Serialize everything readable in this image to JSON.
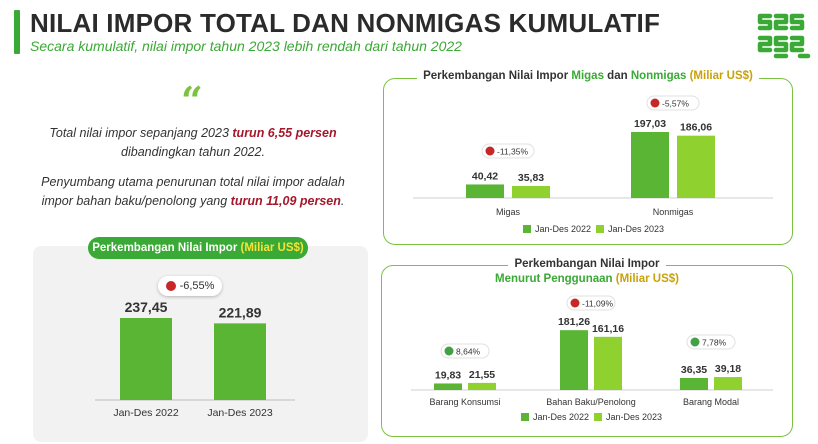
{
  "header": {
    "title": "NILAI IMPOR TOTAL DAN NONMIGAS KUMULATIF",
    "subtitle": "Secara kumulatif, nilai impor tahun 2023 lebih rendah dari tahun 2022"
  },
  "quote": {
    "symbol": "“",
    "p1_a": "Total nilai impor sepanjang 2023 ",
    "p1_b": "turun 6,55 persen",
    "p1_c": " dibandingkan tahun 2022.",
    "p2_a": "Penyumbang utama penurunan total nilai impor adalah impor bahan baku/penolong yang ",
    "p2_b": "turun 11,09 persen",
    "p2_c": "."
  },
  "colors": {
    "accent": "#3aa935",
    "bar_2022": "#5ab535",
    "bar_2023": "#8fd12e",
    "down": "#c62828",
    "up": "#43a047",
    "highlight": "#a5172b"
  },
  "chart_data": [
    {
      "type": "bar",
      "title_main": "Perkembangan Nilai Impor ",
      "title_unit": "(Miliar US$)",
      "categories": [
        "Jan-Des 2022",
        "Jan-Des 2023"
      ],
      "values": [
        237.45,
        221.89
      ],
      "value_labels": [
        "237,45",
        "221,89"
      ],
      "badge": "-6,55%",
      "ylim": [
        0,
        260
      ]
    },
    {
      "type": "bar",
      "title_a": "Perkembangan Nilai Impor ",
      "title_b": "Migas",
      "title_c": " dan ",
      "title_d": "Nonmigas",
      "title_e": " (Miliar US$)",
      "categories": [
        "Migas",
        "Nonmigas"
      ],
      "series": [
        {
          "name": "Jan-Des 2022",
          "values": [
            40.42,
            197.03
          ],
          "labels": [
            "40,42",
            "197,03"
          ]
        },
        {
          "name": "Jan-Des 2023",
          "values": [
            35.83,
            186.06
          ],
          "labels": [
            "35,83",
            "186,06"
          ]
        }
      ],
      "badges": [
        "-11,35%",
        "-5,57%"
      ],
      "ylim": [
        0,
        210
      ]
    },
    {
      "type": "bar",
      "title_line1": "Perkembangan Nilai Impor",
      "title_line2_a": "Menurut Penggunaan ",
      "title_line2_b": "(Miliar US$)",
      "categories": [
        "Barang Konsumsi",
        "Bahan Baku/Penolong",
        "Barang Modal"
      ],
      "series": [
        {
          "name": "Jan-Des 2022",
          "values": [
            19.83,
            181.26,
            36.35
          ],
          "labels": [
            "19,83",
            "181,26",
            "36,35"
          ]
        },
        {
          "name": "Jan-Des 2023",
          "values": [
            21.55,
            161.16,
            39.18
          ],
          "labels": [
            "21,55",
            "161,16",
            "39,18"
          ]
        }
      ],
      "badges": [
        "8,64%",
        "-11,09%",
        "7,78%"
      ],
      "badge_direction": [
        "up",
        "down",
        "up"
      ],
      "ylim": [
        0,
        200
      ]
    }
  ]
}
